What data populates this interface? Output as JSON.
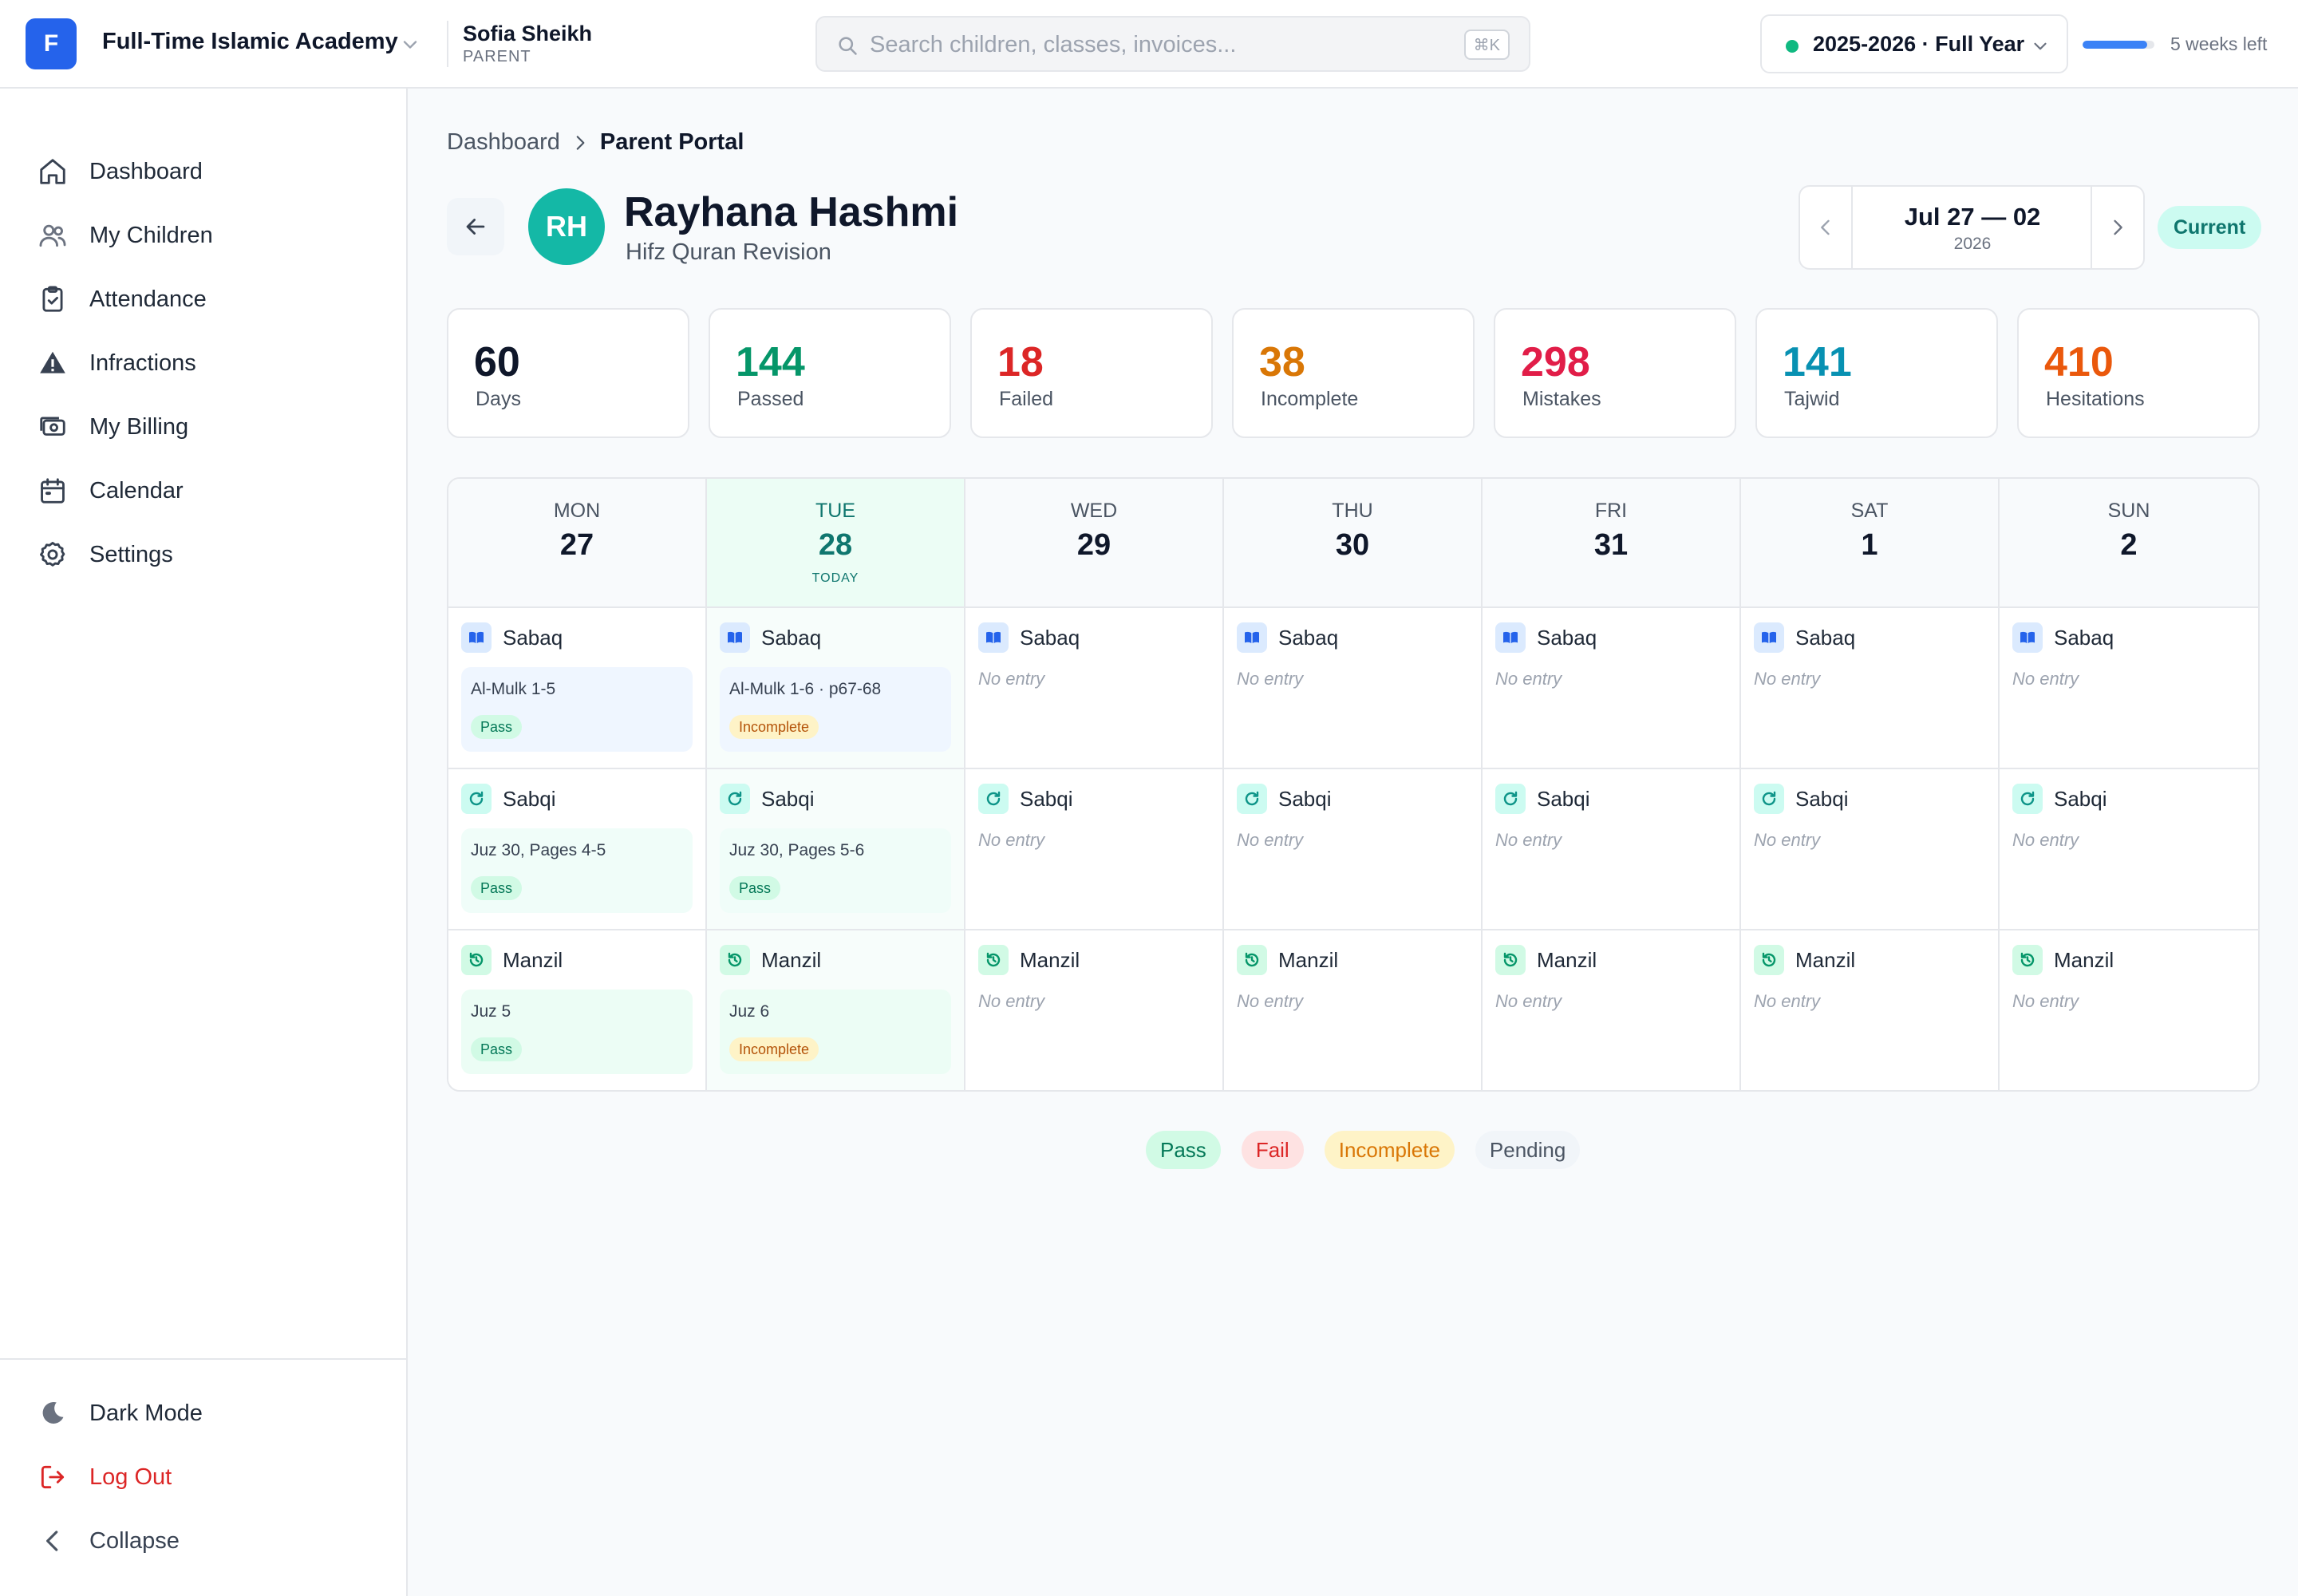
{
  "header": {
    "logo_letter": "F",
    "org_name": "Full-Time Islamic Academy",
    "user_name": "Sofia Sheikh",
    "user_role": "PARENT",
    "search_placeholder": "Search children, classes, invoices...",
    "search_shortcut": "⌘K",
    "academic_year": "2025-2026 · Full Year",
    "term_progress": 0.9,
    "term_remaining": "5 weeks left"
  },
  "sidebar": {
    "items": [
      {
        "label": "Dashboard",
        "icon": "home-icon"
      },
      {
        "label": "My Children",
        "icon": "users-icon"
      },
      {
        "label": "Attendance",
        "icon": "clipboard-check-icon"
      },
      {
        "label": "Infractions",
        "icon": "warning-icon"
      },
      {
        "label": "My Billing",
        "icon": "billing-icon"
      },
      {
        "label": "Calendar",
        "icon": "calendar-icon"
      },
      {
        "label": "Settings",
        "icon": "gear-icon"
      }
    ],
    "footer": {
      "dark_mode": "Dark Mode",
      "logout": "Log Out",
      "collapse": "Collapse"
    }
  },
  "breadcrumb": {
    "parent": "Dashboard",
    "current": "Parent Portal"
  },
  "student": {
    "initials": "RH",
    "name": "Rayhana Hashmi",
    "program": "Hifz Quran Revision"
  },
  "week": {
    "range": "Jul 27 — 02",
    "year": "2026",
    "status": "Current"
  },
  "stats": [
    {
      "value": "60",
      "label": "Days",
      "color": "#0f172a"
    },
    {
      "value": "144",
      "label": "Passed",
      "color": "#059669"
    },
    {
      "value": "18",
      "label": "Failed",
      "color": "#dc2626"
    },
    {
      "value": "38",
      "label": "Incomplete",
      "color": "#d97706"
    },
    {
      "value": "298",
      "label": "Mistakes",
      "color": "#e11d48"
    },
    {
      "value": "141",
      "label": "Tajwid",
      "color": "#0891b2"
    },
    {
      "value": "410",
      "label": "Hesitations",
      "color": "#ea580c"
    }
  ],
  "calendar": {
    "today_label": "TODAY",
    "no_entry": "No entry",
    "days": [
      {
        "name": "MON",
        "num": "27",
        "today": false
      },
      {
        "name": "TUE",
        "num": "28",
        "today": true
      },
      {
        "name": "WED",
        "num": "29",
        "today": false
      },
      {
        "name": "THU",
        "num": "30",
        "today": false
      },
      {
        "name": "FRI",
        "num": "31",
        "today": false
      },
      {
        "name": "SAT",
        "num": "1",
        "today": false
      },
      {
        "name": "SUN",
        "num": "2",
        "today": false
      }
    ],
    "rows": [
      {
        "title": "Sabaq",
        "key": "sabaq",
        "entries": [
          {
            "text": "Al-Mulk 1-5",
            "status": "Pass"
          },
          {
            "text": "Al-Mulk 1-6 · p67-68",
            "status": "Incomplete"
          },
          null,
          null,
          null,
          null,
          null
        ]
      },
      {
        "title": "Sabqi",
        "key": "sabqi",
        "entries": [
          {
            "text": "Juz 30, Pages 4-5",
            "status": "Pass"
          },
          {
            "text": "Juz 30, Pages 5-6",
            "status": "Pass"
          },
          null,
          null,
          null,
          null,
          null
        ]
      },
      {
        "title": "Manzil",
        "key": "manzil",
        "entries": [
          {
            "text": "Juz 5",
            "status": "Pass"
          },
          {
            "text": "Juz 6",
            "status": "Incomplete"
          },
          null,
          null,
          null,
          null,
          null
        ]
      }
    ]
  },
  "legend": [
    "Pass",
    "Fail",
    "Incomplete",
    "Pending"
  ]
}
